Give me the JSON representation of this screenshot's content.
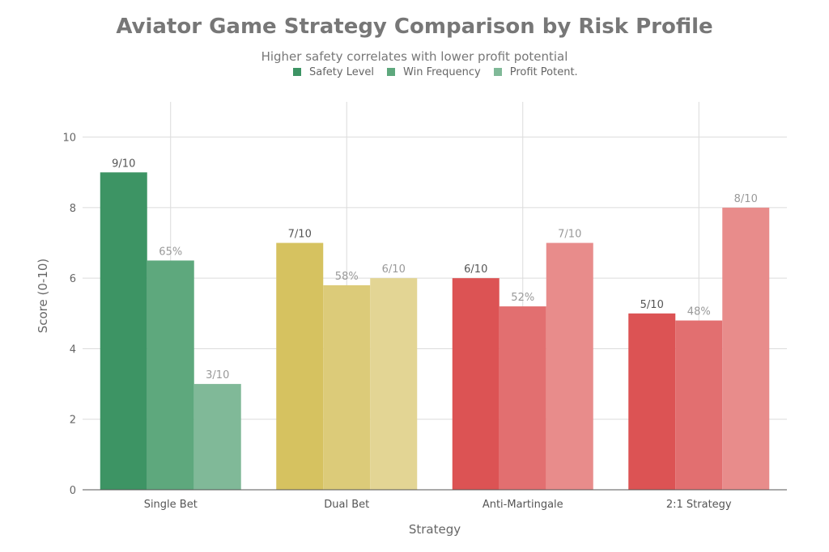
{
  "chart_data": {
    "type": "bar",
    "title": "Aviator Game Strategy Comparison by Risk Profile",
    "subtitle": "Higher safety correlates with lower profit potential",
    "xlabel": "Strategy",
    "ylabel": "Score (0-10)",
    "ylim": [
      0,
      11
    ],
    "yticks": [
      0,
      2,
      4,
      6,
      8,
      10
    ],
    "grid": true,
    "legend_position": "top",
    "categories": [
      "Single Bet",
      "Dual Bet",
      "Anti-Martingale",
      "2:1 Strategy"
    ],
    "series": [
      {
        "name": "Safety Level",
        "values": [
          9,
          7,
          6,
          5
        ],
        "labels": [
          "9/10",
          "7/10",
          "6/10",
          "5/10"
        ]
      },
      {
        "name": "Win Frequency",
        "values": [
          6.5,
          5.8,
          5.2,
          4.8
        ],
        "labels": [
          "65%",
          "58%",
          "52%",
          "48%"
        ]
      },
      {
        "name": "Profit Potent.",
        "values": [
          3,
          6,
          7,
          8
        ],
        "labels": [
          "3/10",
          "6/10",
          "7/10",
          "8/10"
        ]
      }
    ],
    "category_colors": [
      [
        "#3d9464",
        "#5ea87d",
        "#80b998"
      ],
      [
        "#d6c260",
        "#dccb79",
        "#e3d594"
      ],
      [
        "#dc5354",
        "#e26f70",
        "#e88c8b"
      ],
      [
        "#dc5354",
        "#e26f70",
        "#e88c8b"
      ]
    ],
    "legend_colors": [
      "#3d9464",
      "#5ea87d",
      "#80b998"
    ]
  }
}
